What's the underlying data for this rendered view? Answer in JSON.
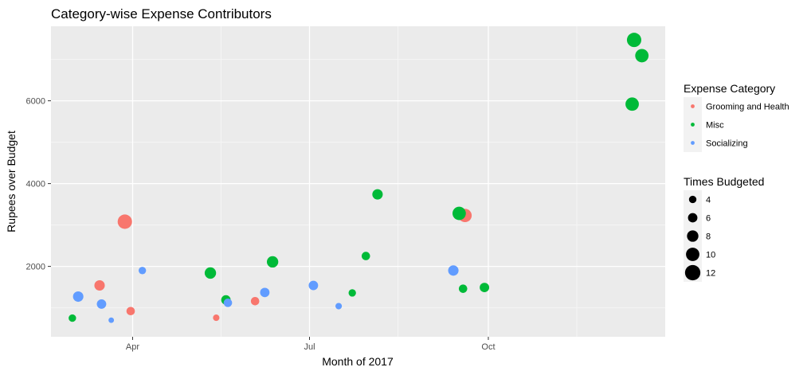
{
  "chart_data": {
    "type": "scatter",
    "title": "Category-wise Expense Contributors",
    "xlabel": "Month of 2017",
    "ylabel": "Rupees over Budget",
    "x_ticks": [
      "Apr",
      "Jul",
      "Oct"
    ],
    "x_tick_dates": [
      "2017-04-01",
      "2017-07-01",
      "2017-10-01"
    ],
    "xlim": [
      "2017-02-18",
      "2017-12-31"
    ],
    "y_ticks": [
      2000,
      4000,
      6000
    ],
    "ylim": [
      300,
      7800
    ],
    "grid": true,
    "legend_position": "right",
    "color_legend": {
      "title": "Expense Category",
      "entries": [
        {
          "name": "Grooming and Health",
          "color": "#F8766D"
        },
        {
          "name": "Misc",
          "color": "#00BA38"
        },
        {
          "name": "Socializing",
          "color": "#619CFF"
        }
      ]
    },
    "size_legend": {
      "title": "Times Budgeted",
      "values": [
        4,
        6,
        8,
        10,
        12
      ]
    },
    "series": [
      {
        "name": "Grooming and Health",
        "color": "#F8766D",
        "points": [
          {
            "x": "2017-03-15",
            "y": 1540,
            "size": 7
          },
          {
            "x": "2017-03-28",
            "y": 3080,
            "size": 11
          },
          {
            "x": "2017-03-31",
            "y": 920,
            "size": 5
          },
          {
            "x": "2017-05-14",
            "y": 760,
            "size": 3
          },
          {
            "x": "2017-06-03",
            "y": 1160,
            "size": 5
          },
          {
            "x": "2017-09-19",
            "y": 3230,
            "size": 10
          }
        ]
      },
      {
        "name": "Misc",
        "color": "#00BA38",
        "points": [
          {
            "x": "2017-03-01",
            "y": 750,
            "size": 4
          },
          {
            "x": "2017-05-11",
            "y": 1840,
            "size": 8
          },
          {
            "x": "2017-05-19",
            "y": 1190,
            "size": 6
          },
          {
            "x": "2017-06-12",
            "y": 2110,
            "size": 8
          },
          {
            "x": "2017-07-23",
            "y": 1360,
            "size": 4
          },
          {
            "x": "2017-07-30",
            "y": 2250,
            "size": 5
          },
          {
            "x": "2017-08-05",
            "y": 3740,
            "size": 7
          },
          {
            "x": "2017-09-16",
            "y": 3280,
            "size": 10
          },
          {
            "x": "2017-09-18",
            "y": 1460,
            "size": 5
          },
          {
            "x": "2017-09-29",
            "y": 1490,
            "size": 6
          },
          {
            "x": "2017-12-14",
            "y": 5920,
            "size": 10
          },
          {
            "x": "2017-12-15",
            "y": 7470,
            "size": 11
          },
          {
            "x": "2017-12-19",
            "y": 7090,
            "size": 10
          }
        ]
      },
      {
        "name": "Socializing",
        "color": "#619CFF",
        "points": [
          {
            "x": "2017-03-04",
            "y": 1270,
            "size": 7
          },
          {
            "x": "2017-03-16",
            "y": 1090,
            "size": 6
          },
          {
            "x": "2017-03-21",
            "y": 700,
            "size": 2
          },
          {
            "x": "2017-04-06",
            "y": 1900,
            "size": 4
          },
          {
            "x": "2017-05-20",
            "y": 1120,
            "size": 5
          },
          {
            "x": "2017-06-08",
            "y": 1370,
            "size": 6
          },
          {
            "x": "2017-07-03",
            "y": 1540,
            "size": 6
          },
          {
            "x": "2017-07-16",
            "y": 1040,
            "size": 3
          },
          {
            "x": "2017-09-13",
            "y": 1900,
            "size": 7
          }
        ]
      }
    ]
  }
}
